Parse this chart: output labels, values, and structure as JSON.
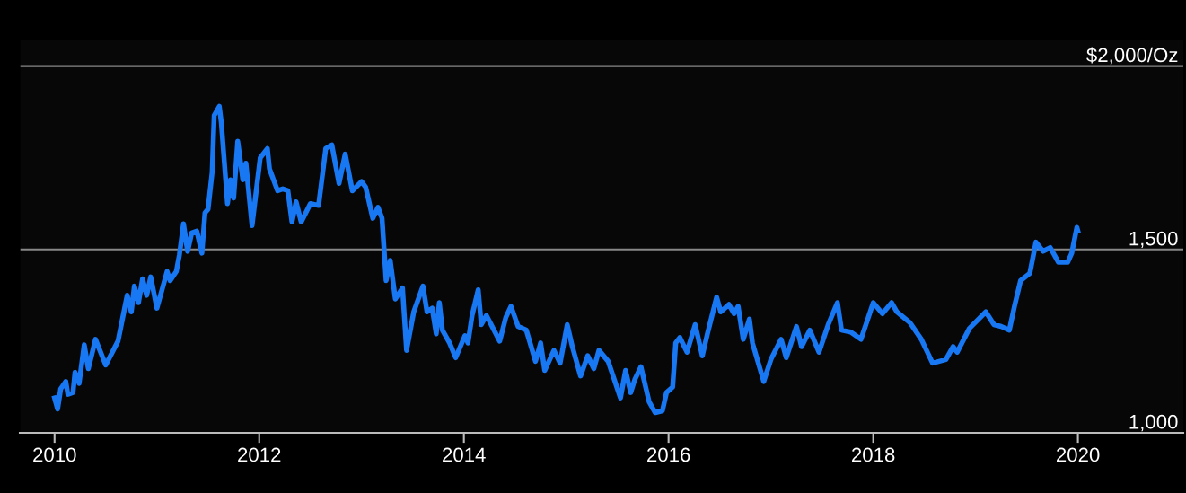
{
  "chart_data": {
    "type": "line",
    "xlim": [
      2009.66,
      2021.03
    ],
    "ylim": [
      1000,
      2070
    ],
    "xticks": [
      2010,
      2012,
      2014,
      2016,
      2018,
      2020
    ],
    "yticks": [
      {
        "value": 1000,
        "label": "1,000"
      },
      {
        "value": 1500,
        "label": "1,500"
      },
      {
        "value": 2000,
        "label": "$2,000/Oz"
      }
    ],
    "grid": "y",
    "legend": false,
    "marker": "none",
    "line_style": "solid",
    "series": [
      {
        "color": "#1877f2",
        "x": [
          2010.0,
          2010.03,
          2010.06,
          2010.11,
          2010.13,
          2010.18,
          2010.2,
          2010.24,
          2010.29,
          2010.33,
          2010.4,
          2010.5,
          2010.62,
          2010.71,
          2010.75,
          2010.78,
          2010.82,
          2010.86,
          2010.9,
          2010.94,
          2011.0,
          2011.1,
          2011.13,
          2011.19,
          2011.22,
          2011.26,
          2011.3,
          2011.34,
          2011.39,
          2011.44,
          2011.47,
          2011.5,
          2011.54,
          2011.56,
          2011.61,
          2011.63,
          2011.69,
          2011.72,
          2011.75,
          2011.79,
          2011.84,
          2011.87,
          2011.93,
          2012.01,
          2012.08,
          2012.1,
          2012.18,
          2012.23,
          2012.28,
          2012.32,
          2012.36,
          2012.41,
          2012.5,
          2012.58,
          2012.65,
          2012.71,
          2012.78,
          2012.84,
          2012.91,
          2013.0,
          2013.04,
          2013.11,
          2013.16,
          2013.2,
          2013.24,
          2013.28,
          2013.33,
          2013.4,
          2013.44,
          2013.51,
          2013.6,
          2013.64,
          2013.69,
          2013.73,
          2013.76,
          2013.79,
          2013.86,
          2013.92,
          2014.01,
          2014.04,
          2014.08,
          2014.14,
          2014.17,
          2014.22,
          2014.35,
          2014.41,
          2014.46,
          2014.53,
          2014.61,
          2014.7,
          2014.75,
          2014.79,
          2014.88,
          2014.94,
          2015.01,
          2015.06,
          2015.14,
          2015.21,
          2015.27,
          2015.32,
          2015.41,
          2015.53,
          2015.58,
          2015.63,
          2015.67,
          2015.73,
          2015.81,
          2015.87,
          2015.94,
          2015.98,
          2016.04,
          2016.07,
          2016.11,
          2016.18,
          2016.26,
          2016.33,
          2016.38,
          2016.47,
          2016.51,
          2016.59,
          2016.64,
          2016.68,
          2016.73,
          2016.79,
          2016.82,
          2016.93,
          2017.0,
          2017.1,
          2017.15,
          2017.25,
          2017.3,
          2017.38,
          2017.47,
          2017.56,
          2017.65,
          2017.69,
          2017.78,
          2017.88,
          2018.0,
          2018.09,
          2018.18,
          2018.23,
          2018.36,
          2018.47,
          2018.58,
          2018.71,
          2018.78,
          2018.82,
          2018.94,
          2019.1,
          2019.18,
          2019.25,
          2019.33,
          2019.38,
          2019.44,
          2019.53,
          2019.59,
          2019.66,
          2019.73,
          2019.81,
          2019.9,
          2019.94,
          2019.99,
          2020.0
        ],
        "values": [
          1095,
          1065,
          1120,
          1140,
          1105,
          1110,
          1165,
          1135,
          1240,
          1175,
          1255,
          1185,
          1250,
          1375,
          1330,
          1400,
          1355,
          1420,
          1375,
          1425,
          1340,
          1440,
          1415,
          1440,
          1485,
          1570,
          1495,
          1545,
          1550,
          1490,
          1600,
          1610,
          1710,
          1865,
          1890,
          1845,
          1625,
          1690,
          1640,
          1795,
          1690,
          1735,
          1565,
          1750,
          1775,
          1720,
          1660,
          1665,
          1660,
          1575,
          1630,
          1575,
          1625,
          1620,
          1775,
          1785,
          1680,
          1760,
          1660,
          1685,
          1670,
          1585,
          1615,
          1585,
          1415,
          1470,
          1365,
          1395,
          1225,
          1330,
          1400,
          1330,
          1340,
          1270,
          1355,
          1280,
          1245,
          1205,
          1265,
          1245,
          1320,
          1390,
          1295,
          1320,
          1250,
          1315,
          1345,
          1290,
          1280,
          1195,
          1245,
          1170,
          1225,
          1190,
          1295,
          1235,
          1155,
          1210,
          1175,
          1225,
          1195,
          1095,
          1170,
          1110,
          1145,
          1180,
          1085,
          1055,
          1060,
          1110,
          1125,
          1245,
          1260,
          1220,
          1295,
          1210,
          1270,
          1370,
          1330,
          1350,
          1325,
          1345,
          1255,
          1310,
          1245,
          1140,
          1200,
          1255,
          1205,
          1290,
          1235,
          1280,
          1220,
          1295,
          1355,
          1280,
          1275,
          1255,
          1355,
          1325,
          1355,
          1330,
          1300,
          1255,
          1190,
          1200,
          1235,
          1220,
          1285,
          1330,
          1295,
          1290,
          1280,
          1345,
          1415,
          1435,
          1520,
          1495,
          1505,
          1465,
          1465,
          1490,
          1560,
          1550
        ]
      }
    ]
  }
}
